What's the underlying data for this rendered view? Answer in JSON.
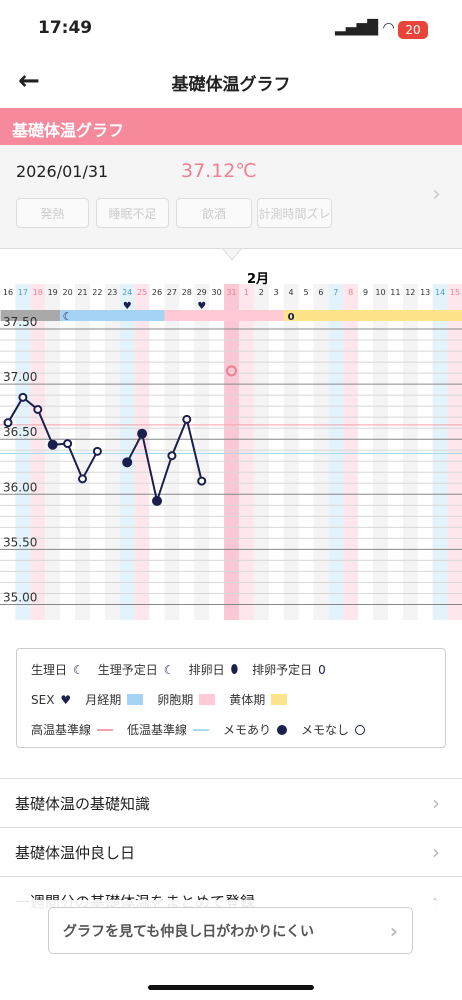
{
  "status": {
    "time": "17:49",
    "battery": "20"
  },
  "header": {
    "title": "基礎体温グラフ"
  },
  "section": {
    "title": "基礎体温グラフ"
  },
  "record": {
    "date": "2026/01/31",
    "temperature": "37.12℃",
    "tags": [
      "発熱",
      "睡眠不足",
      "飲酒",
      "計測時間ズレ"
    ]
  },
  "chart": {
    "month_label": "2月",
    "days": [
      "16",
      "17",
      "18",
      "19",
      "20",
      "21",
      "22",
      "23",
      "24",
      "25",
      "26",
      "27",
      "28",
      "29",
      "30",
      "31",
      "1",
      "2",
      "3",
      "4",
      "5",
      "6",
      "7",
      "8",
      "9",
      "10",
      "11",
      "12",
      "13",
      "14",
      "15"
    ],
    "saturdays": [
      1,
      8,
      15,
      22,
      29
    ],
    "sundays": [
      2,
      9,
      16,
      23,
      30
    ],
    "selected": 15,
    "values": [
      36.65,
      36.88,
      36.77,
      36.45,
      36.46,
      36.14,
      36.39,
      null,
      36.29,
      36.55,
      35.94,
      36.35,
      36.68,
      36.12,
      null,
      null,
      null,
      null,
      null,
      null,
      null,
      null,
      null,
      null,
      null,
      null,
      null,
      null,
      null,
      null,
      null
    ],
    "selected_value": 37.12,
    "ylim": [
      34.9,
      37.65
    ],
    "yticks": [
      {
        "value": 35,
        "label": "35.00"
      },
      {
        "value": 35.5,
        "label": "35.50"
      },
      {
        "value": 36,
        "label": "36.00"
      },
      {
        "value": 36.5,
        "label": "36.50"
      },
      {
        "value": 37,
        "label": "37.00"
      },
      {
        "value": 37.5,
        "label": "37.50"
      }
    ],
    "high_line": 36.63,
    "low_line": 36.37,
    "phases": [
      {
        "color": "#a9a9a9",
        "from": 0,
        "to": 3
      },
      {
        "color": "#a5d3f5",
        "from": 4,
        "to": 10
      },
      {
        "color": "#ffc9d6",
        "from": 11,
        "to": 18
      },
      {
        "color": "#fde38a",
        "from": 19,
        "to": 30
      }
    ],
    "period_day": 4,
    "ovulation_predicted_day": 19,
    "sex_days": [
      8,
      13
    ]
  },
  "legend": {
    "rows": [
      [
        "生理日",
        "生理予定日",
        "排卵日",
        "排卵予定日"
      ],
      [
        "SEX",
        "月経期",
        "卵胞期",
        "黄体期"
      ],
      [
        "高温基準線",
        "低温基準線",
        "メモあり",
        "メモなし"
      ]
    ]
  },
  "menu": [
    "基礎体温の基礎知識",
    "基礎体温仲良し日",
    "一週間分の基礎体温をまとめて登録"
  ],
  "banner": "グラフを見ても仲良し日がわかりにくい"
}
